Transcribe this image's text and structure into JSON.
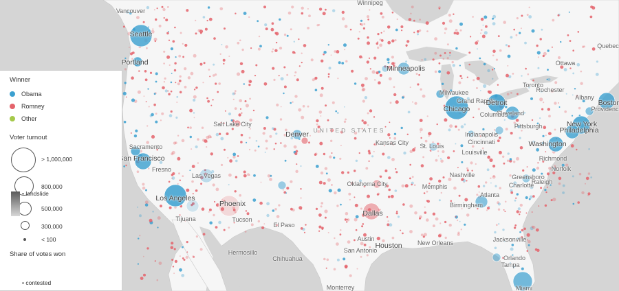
{
  "map": {
    "country_label": "UNITED STATES",
    "colors": {
      "obama": "#3ba0d0",
      "romney": "#e4636b",
      "other": "#a5c94a",
      "land": "#f7f7f7",
      "water": "#d4d4d4"
    },
    "cities": [
      {
        "name": "Vancouver",
        "big": false
      },
      {
        "name": "Winnipeg",
        "big": false
      },
      {
        "name": "Seattle",
        "big": true
      },
      {
        "name": "Portland",
        "big": true
      },
      {
        "name": "Quebec",
        "big": false
      },
      {
        "name": "Ottawa",
        "big": false
      },
      {
        "name": "Toronto",
        "big": false
      },
      {
        "name": "Minneapolis",
        "big": true
      },
      {
        "name": "Milwaukee",
        "big": false
      },
      {
        "name": "Grand Rapids",
        "big": false
      },
      {
        "name": "Detroit",
        "big": true
      },
      {
        "name": "Chicago",
        "big": true
      },
      {
        "name": "Cleveland",
        "big": false
      },
      {
        "name": "Rochester",
        "big": false
      },
      {
        "name": "Albany",
        "big": false
      },
      {
        "name": "Boston",
        "big": true
      },
      {
        "name": "Providence",
        "big": false
      },
      {
        "name": "New York",
        "big": true
      },
      {
        "name": "Philadelphia",
        "big": true
      },
      {
        "name": "Pittsburgh",
        "big": false
      },
      {
        "name": "Columbus",
        "big": false
      },
      {
        "name": "Indianapolis",
        "big": false
      },
      {
        "name": "Washington",
        "big": true
      },
      {
        "name": "Cincinnati",
        "big": false
      },
      {
        "name": "Louisville",
        "big": false
      },
      {
        "name": "Richmond",
        "big": false
      },
      {
        "name": "Norfolk",
        "big": false
      },
      {
        "name": "Salt Lake City",
        "big": false
      },
      {
        "name": "Denver",
        "big": true
      },
      {
        "name": "Kansas City",
        "big": false
      },
      {
        "name": "St. Louis",
        "big": false
      },
      {
        "name": "Sacramento",
        "big": false
      },
      {
        "name": "San Francisco",
        "big": true
      },
      {
        "name": "Fresno",
        "big": false
      },
      {
        "name": "Las Vegas",
        "big": false
      },
      {
        "name": "Los Angeles",
        "big": true
      },
      {
        "name": "Phoenix",
        "big": true
      },
      {
        "name": "Tijuana",
        "big": false
      },
      {
        "name": "Tucson",
        "big": false
      },
      {
        "name": "El Paso",
        "big": false
      },
      {
        "name": "Oklahoma City",
        "big": false
      },
      {
        "name": "Memphis",
        "big": false
      },
      {
        "name": "Nashville",
        "big": false
      },
      {
        "name": "Greensboro",
        "big": false
      },
      {
        "name": "Charlotte",
        "big": false
      },
      {
        "name": "Raleigh",
        "big": false
      },
      {
        "name": "Atlanta",
        "big": false
      },
      {
        "name": "Birmingham",
        "big": false
      },
      {
        "name": "Dallas",
        "big": true
      },
      {
        "name": "Austin",
        "big": false
      },
      {
        "name": "Houston",
        "big": true
      },
      {
        "name": "San Antonio",
        "big": false
      },
      {
        "name": "New Orleans",
        "big": false
      },
      {
        "name": "Jacksonville",
        "big": false
      },
      {
        "name": "Tampa",
        "big": false
      },
      {
        "name": "Orlando",
        "big": false
      },
      {
        "name": "Miami",
        "big": false
      },
      {
        "name": "Hermosillo",
        "big": false
      },
      {
        "name": "Chihuahua",
        "big": false
      },
      {
        "name": "Monterrey",
        "big": false
      }
    ]
  },
  "legend": {
    "winner_title": "Winner",
    "winners": [
      {
        "label": "Obama",
        "color": "#3ba0d0"
      },
      {
        "label": "Romney",
        "color": "#e4636b"
      },
      {
        "label": "Other",
        "color": "#a5c94a"
      }
    ],
    "turnout_title": "Voter turnout",
    "turnout": [
      "> 1,000,000",
      "800,000",
      "500,000",
      "300,000",
      "< 100"
    ],
    "share_title": "Share of votes won",
    "share_top": "landslide",
    "share_bottom": "contested"
  }
}
